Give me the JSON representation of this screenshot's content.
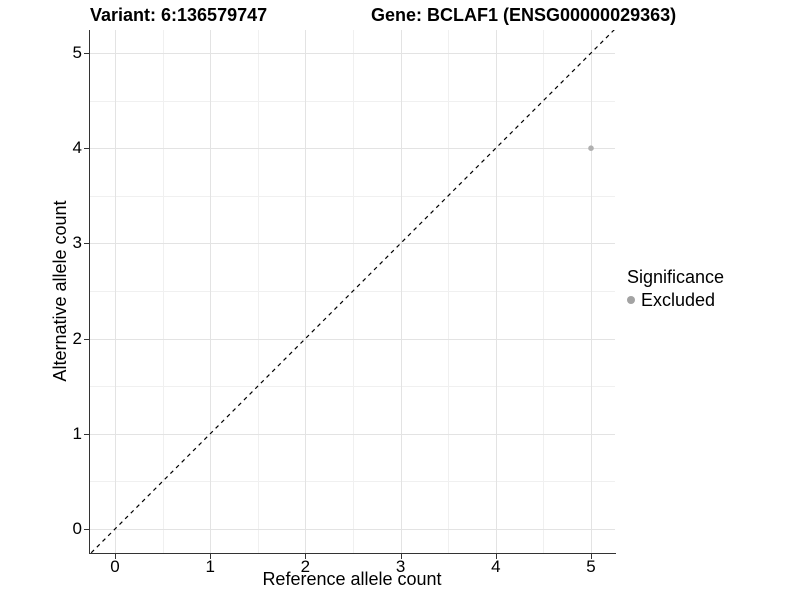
{
  "chart_data": {
    "type": "scatter",
    "title_left": "Variant: 6:136579747",
    "title_right": "Gene: BCLAF1 (ENSG00000029363)",
    "xlabel": "Reference allele count",
    "ylabel": "Alternative allele count",
    "x_ticks": [
      0,
      1,
      2,
      3,
      4,
      5
    ],
    "y_ticks": [
      0,
      1,
      2,
      3,
      4,
      5
    ],
    "xlim": [
      -0.25,
      5.25
    ],
    "ylim": [
      -0.25,
      5.25
    ],
    "grid": "major gridlines at integers, minor gridlines at 0.5 steps, light gray on white",
    "reference_line": {
      "type": "identity y=x",
      "style": "dashed",
      "color": "#000000"
    },
    "series": [
      {
        "name": "Excluded",
        "color": "#b0b0b0",
        "points": [
          {
            "x": 5,
            "y": 4
          }
        ]
      }
    ],
    "legend": {
      "title": "Significance",
      "position": "right",
      "items": [
        {
          "label": "Excluded",
          "color": "#a3a3a3"
        }
      ]
    }
  }
}
